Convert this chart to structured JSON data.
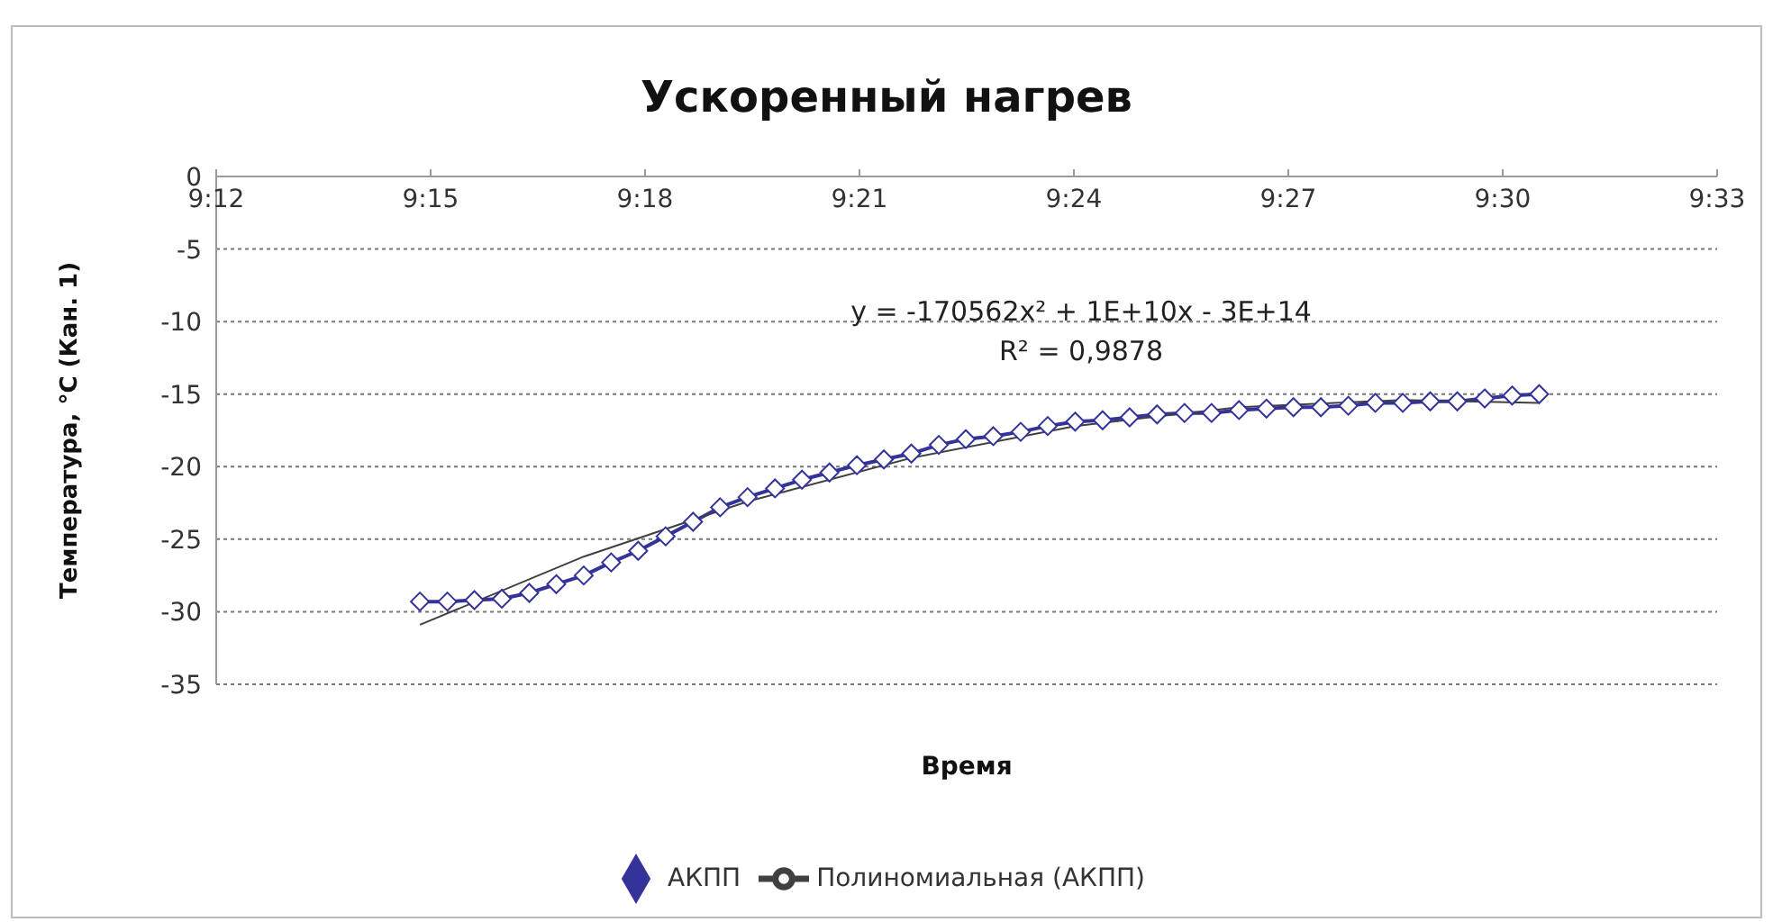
{
  "chart_data": {
    "type": "line",
    "title": "Ускоренный нагрев",
    "xlabel": "Время",
    "ylabel": "Температура, °C (Кан. 1)",
    "xlim": [
      9.2,
      9.55
    ],
    "xticks": [
      {
        "value": 9.2,
        "label": "9:12"
      },
      {
        "value": 9.25,
        "label": "9:15"
      },
      {
        "value": 9.3,
        "label": "9:18"
      },
      {
        "value": 9.35,
        "label": "9:21"
      },
      {
        "value": 9.4,
        "label": "9:24"
      },
      {
        "value": 9.45,
        "label": "9:27"
      },
      {
        "value": 9.5,
        "label": "9:30"
      },
      {
        "value": 9.55,
        "label": "9:33"
      }
    ],
    "ylim": [
      -35,
      0
    ],
    "yticks": [
      -35,
      -30,
      -25,
      -20,
      -15,
      -10,
      -5,
      0
    ],
    "grid": "y",
    "legend": "bottom",
    "annotations": [
      "y = -170562x² + 1E+10x - 3E+14",
      "R² = 0,9878"
    ],
    "series": [
      {
        "name": "АКПП",
        "color": "#333399",
        "marker": "diamond",
        "x": [
          9.2475,
          9.2539,
          9.2602,
          9.2666,
          9.273,
          9.2793,
          9.2857,
          9.2921,
          9.2984,
          9.3048,
          9.3112,
          9.3175,
          9.3239,
          9.3303,
          9.3366,
          9.343,
          9.3494,
          9.3557,
          9.3621,
          9.3685,
          9.3748,
          9.3812,
          9.3876,
          9.3939,
          9.4003,
          9.4067,
          9.413,
          9.4194,
          9.4258,
          9.4321,
          9.4385,
          9.4449,
          9.4512,
          9.4576,
          9.464,
          9.4703,
          9.4767,
          9.4831,
          9.4894,
          9.4958,
          9.5022,
          9.5085
        ],
        "values": [
          -29.3,
          -29.3,
          -29.2,
          -29.1,
          -28.7,
          -28.1,
          -27.5,
          -26.6,
          -25.8,
          -24.8,
          -23.8,
          -22.8,
          -22.1,
          -21.5,
          -20.9,
          -20.4,
          -19.9,
          -19.5,
          -19.1,
          -18.5,
          -18.1,
          -17.9,
          -17.6,
          -17.2,
          -16.9,
          -16.8,
          -16.6,
          -16.4,
          -16.3,
          -16.3,
          -16.1,
          -16.0,
          -15.9,
          -15.9,
          -15.8,
          -15.6,
          -15.6,
          -15.5,
          -15.5,
          -15.3,
          -15.1,
          -15.0
        ]
      },
      {
        "name": "Полиномиальная (АКПП)",
        "type": "line",
        "color": "#404040",
        "marker": "none",
        "x": [
          9.2475,
          9.2857,
          9.3239,
          9.3621,
          9.4003,
          9.4385,
          9.4767,
          9.5085
        ],
        "values": [
          -30.9,
          -26.2,
          -22.4,
          -19.4,
          -17.2,
          -15.9,
          -15.4,
          -15.6
        ]
      }
    ]
  }
}
